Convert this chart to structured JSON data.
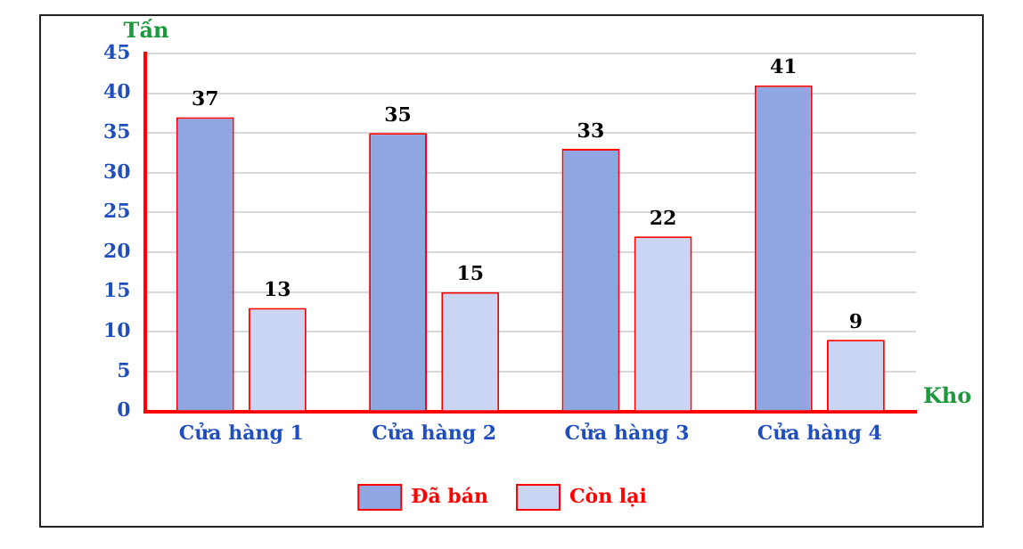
{
  "chart_data": {
    "type": "bar",
    "ylabel": "Tấn",
    "xlabel": "Kho",
    "categories": [
      "Cửa hàng 1",
      "Cửa hàng 2",
      "Cửa hàng 3",
      "Cửa hàng 4"
    ],
    "series": [
      {
        "name": "Đã bán",
        "color": "#8fa6e0",
        "values": [
          37,
          35,
          33,
          41
        ]
      },
      {
        "name": "Còn lại",
        "color": "#c9d5f2",
        "values": [
          13,
          15,
          22,
          9
        ]
      }
    ],
    "ylim": [
      0,
      45
    ],
    "yticks": [
      0,
      5,
      10,
      15,
      20,
      25,
      30,
      35,
      40,
      45
    ],
    "grid": "y",
    "legend": "bottom",
    "data_labels": true
  }
}
